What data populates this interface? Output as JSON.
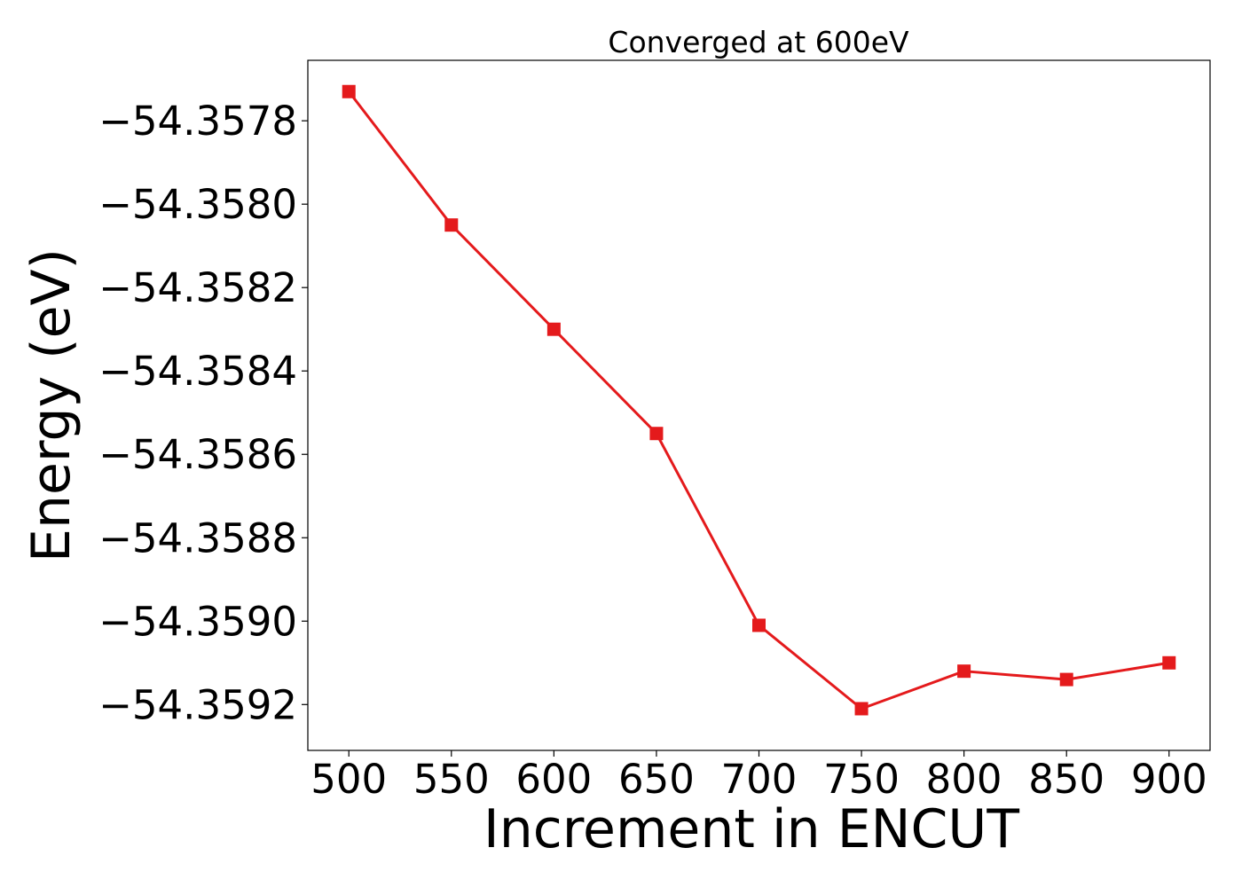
{
  "chart_data": {
    "type": "line",
    "title": "Converged at 600eV",
    "xlabel": "Increment in ENCUT",
    "ylabel": "Energy (eV)",
    "x": [
      500,
      550,
      600,
      650,
      700,
      750,
      800,
      850,
      900
    ],
    "series": [
      {
        "values": [
          -54.35773,
          -54.35805,
          -54.3583,
          -54.35855,
          -54.35901,
          -54.35921,
          -54.35912,
          -54.35914,
          -54.3591
        ],
        "color": "#e41a1c",
        "marker": "square"
      }
    ],
    "xticks": [
      500,
      550,
      600,
      650,
      700,
      750,
      800,
      850,
      900
    ],
    "yticks": [
      -54.3578,
      -54.358,
      -54.3582,
      -54.3584,
      -54.3586,
      -54.3588,
      -54.359,
      -54.3592
    ],
    "ytick_labels": [
      "−54.3578",
      "−54.3580",
      "−54.3582",
      "−54.3584",
      "−54.3586",
      "−54.3588",
      "−54.3590",
      "−54.3592"
    ],
    "xlim": [
      480,
      920
    ],
    "ylim": [
      -54.35931,
      -54.357655
    ],
    "grid": false,
    "legend": "none"
  }
}
